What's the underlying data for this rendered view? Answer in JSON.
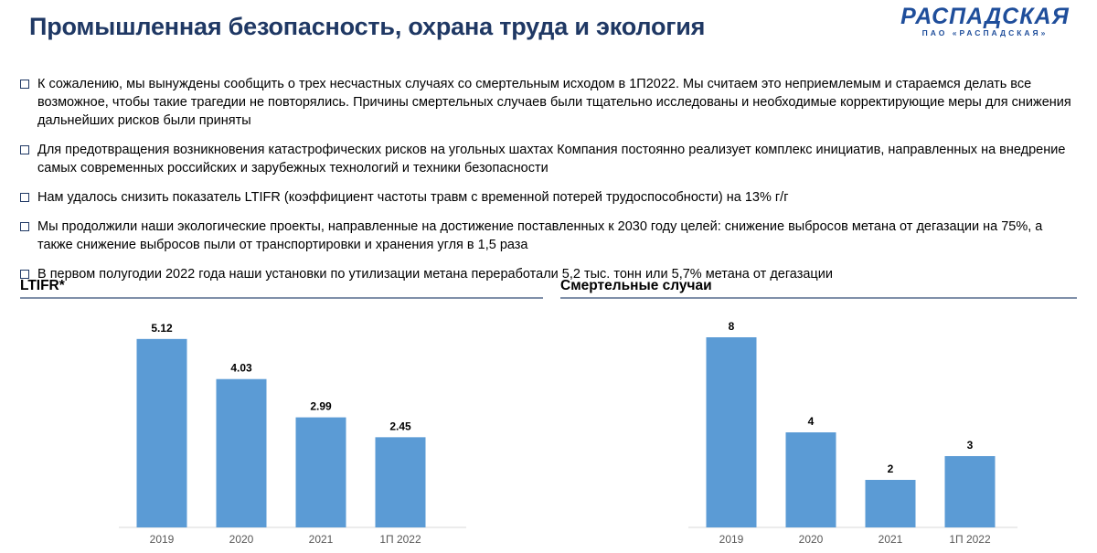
{
  "header": {
    "title": "Промышленная безопасность, охрана труда и экология",
    "logo_brand": "РАСПАДСКАЯ",
    "logo_sub": "ПАО «РАСПАДСКАЯ»"
  },
  "bullets": [
    "К сожалению, мы вынуждены сообщить о трех несчастных случаях со смертельным исходом в 1П2022. Мы считаем это неприемлемым и стараемся делать все возможное, чтобы такие трагедии не повторялись. Причины смертельных случаев были тщательно исследованы и необходимые корректирующие меры для снижения дальнейших рисков были приняты",
    "Для предотвращения возникновения катастрофических рисков на угольных шахтах Компания постоянно реализует комплекс инициатив, направленных на внедрение самых современных российских и зарубежных технологий и техники безопасности",
    "Нам удалось снизить показатель LTIFR (коэффициент частоты травм с временной потерей трудоспособности) на 13% г/г",
    "Мы продолжили наши экологические проекты, направленные на достижение поставленных к 2030 году целей: снижение выбросов метана от дегазации на 75%, а также снижение выбросов пыли от транспортировки и хранения угля в 1,5 раза",
    "В первом полугодии 2022 года наши установки по утилизации метана переработали 5,2 тыс. тонн или 5,7% метана от дегазации"
  ],
  "colors": {
    "bar": "#5b9bd5",
    "title": "#1f3864",
    "rule": "#7f8fa9",
    "axis": "#d9d9d9"
  },
  "chart_data": [
    {
      "type": "bar",
      "title": "LTIFR*",
      "categories": [
        "2019",
        "2020",
        "2021",
        "1П 2022"
      ],
      "values": [
        5.12,
        4.03,
        2.99,
        2.45
      ],
      "labels": [
        "5.12",
        "4.03",
        "2.99",
        "2.45"
      ],
      "ylim": [
        0,
        7.5
      ],
      "xlabel": "",
      "ylabel": ""
    },
    {
      "type": "bar",
      "title": "Смертельные случаи",
      "categories": [
        "2019",
        "2020",
        "2021",
        "1П 2022"
      ],
      "values": [
        8,
        4,
        2,
        3
      ],
      "labels": [
        "8",
        "4",
        "2",
        "3"
      ],
      "ylim": [
        0,
        10
      ],
      "xlabel": "",
      "ylabel": ""
    }
  ]
}
